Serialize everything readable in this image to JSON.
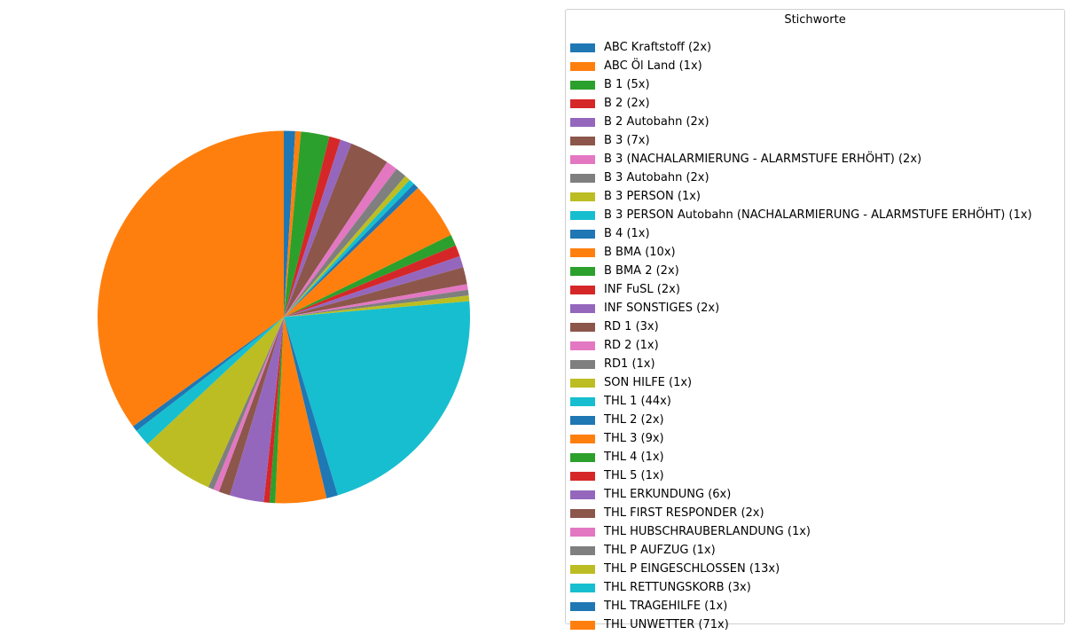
{
  "chart_data": {
    "type": "pie",
    "legend_title": "Stichworte",
    "legend_placement": "right",
    "start_angle_deg": 90,
    "direction": "clockwise",
    "categories": [
      "ABC Kraftstoff (2x)",
      "ABC Öl Land (1x)",
      "B 1 (5x)",
      "B 2 (2x)",
      "B 2 Autobahn (2x)",
      "B 3 (7x)",
      "B 3 (NACHALARMIERUNG - ALARMSTUFE ERHÖHT) (2x)",
      "B 3 Autobahn (2x)",
      "B 3 PERSON (1x)",
      "B 3 PERSON Autobahn (NACHALARMIERUNG - ALARMSTUFE ERHÖHT) (1x)",
      "B 4 (1x)",
      "B BMA (10x)",
      "B BMA 2 (2x)",
      "INF FuSL (2x)",
      "INF SONSTIGES (2x)",
      "RD 1 (3x)",
      "RD 2 (1x)",
      "RD1 (1x)",
      "SON HILFE (1x)",
      "THL 1 (44x)",
      "THL 2 (2x)",
      "THL 3 (9x)",
      "THL 4 (1x)",
      "THL 5 (1x)",
      "THL ERKUNDUNG (6x)",
      "THL FIRST RESPONDER (2x)",
      "THL HUBSCHRAUBERLANDUNG (1x)",
      "THL P AUFZUG (1x)",
      "THL P EINGESCHLOSSEN (13x)",
      "THL RETTUNGSKORB (3x)",
      "THL TRAGEHILFE (1x)",
      "THL UNWETTER (71x)"
    ],
    "values": [
      2,
      1,
      5,
      2,
      2,
      7,
      2,
      2,
      1,
      1,
      1,
      10,
      2,
      2,
      2,
      3,
      1,
      1,
      1,
      44,
      2,
      9,
      1,
      1,
      6,
      2,
      1,
      1,
      13,
      3,
      1,
      71
    ],
    "colors": [
      "#1f77b4",
      "#ff7f0e",
      "#2ca02c",
      "#d62728",
      "#9467bd",
      "#8c564b",
      "#e377c2",
      "#7f7f7f",
      "#bcbd22",
      "#17becf"
    ]
  }
}
